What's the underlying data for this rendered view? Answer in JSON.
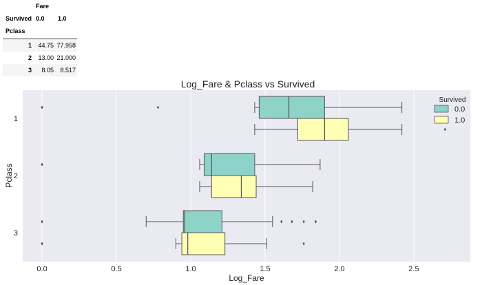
{
  "table": {
    "col_header": "Fare",
    "columns_name": "Survived",
    "columns": [
      "0.0",
      "1.0"
    ],
    "index_name": "Pclass",
    "rows": [
      {
        "index": "1",
        "values": [
          "44.75",
          "77.958"
        ]
      },
      {
        "index": "2",
        "values": [
          "13.00",
          "21.000"
        ]
      },
      {
        "index": "3",
        "values": [
          "8.05",
          "8.517"
        ]
      }
    ]
  },
  "chart_data": {
    "type": "boxplot",
    "title": "Log_Fare & Pclass vs Survived",
    "xlabel": "Log_Fare",
    "ylabel": "Pclass",
    "xlim": [
      -0.13,
      2.88
    ],
    "xticks": [
      "0.0",
      "0.5",
      "1.0",
      "1.5",
      "2.0",
      "2.5"
    ],
    "categories": [
      "1",
      "2",
      "3"
    ],
    "legend": {
      "title": "Survived",
      "position": "top-right"
    },
    "background": "#eaeaf2",
    "series": [
      {
        "name": "0.0",
        "color": "#8dd3c7",
        "boxes": [
          {
            "category": "1",
            "whisker_low": 1.43,
            "q1": 1.46,
            "median": 1.66,
            "q3": 1.9,
            "whisker_high": 2.42,
            "outliers": [
              0.0,
              0.78
            ]
          },
          {
            "category": "2",
            "whisker_low": 1.06,
            "q1": 1.09,
            "median": 1.14,
            "q3": 1.43,
            "whisker_high": 1.87,
            "outliers": [
              0.0
            ]
          },
          {
            "category": "3",
            "whisker_low": 0.7,
            "q1": 0.95,
            "median": 0.96,
            "q3": 1.21,
            "whisker_high": 1.55,
            "outliers": [
              0.0,
              1.61,
              1.68,
              1.76,
              1.84
            ]
          }
        ]
      },
      {
        "name": "1.0",
        "color": "#ffffb3",
        "boxes": [
          {
            "category": "1",
            "whisker_low": 1.43,
            "q1": 1.72,
            "median": 1.9,
            "q3": 2.06,
            "whisker_high": 2.42,
            "outliers": [
              2.71
            ]
          },
          {
            "category": "2",
            "whisker_low": 1.06,
            "q1": 1.14,
            "median": 1.34,
            "q3": 1.44,
            "whisker_high": 1.82,
            "outliers": []
          },
          {
            "category": "3",
            "whisker_low": 0.9,
            "q1": 0.94,
            "median": 0.98,
            "q3": 1.23,
            "whisker_high": 1.51,
            "outliers": [
              0.0,
              1.76
            ]
          }
        ]
      }
    ]
  }
}
